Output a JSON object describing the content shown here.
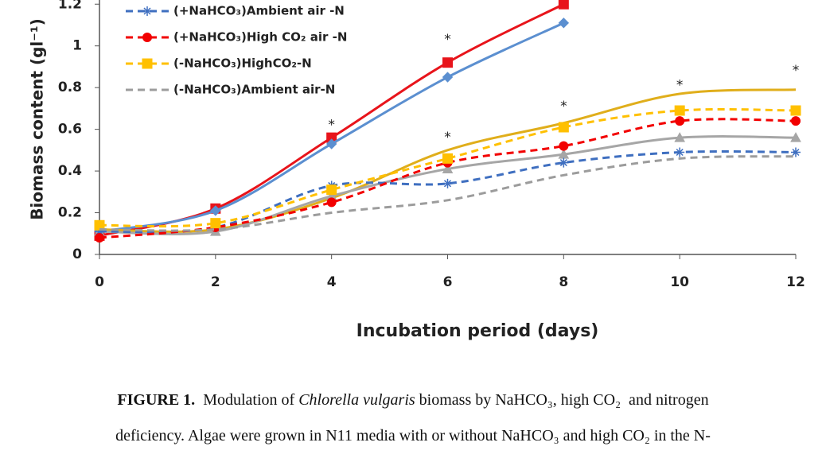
{
  "chart_data": {
    "type": "line",
    "ylabel": "Biomass content (gl⁻¹)",
    "xlabel": "Incubation period (days)",
    "x": [
      0,
      2,
      4,
      6,
      8,
      10,
      12
    ],
    "xlim": [
      0,
      12
    ],
    "xticks": [
      0,
      2,
      4,
      6,
      8,
      10,
      12
    ],
    "ylim": [
      0,
      1.22
    ],
    "yticks": [
      0,
      0.2,
      0.4,
      0.6,
      0.8,
      1,
      1.2
    ],
    "series": [
      {
        "color": "#e8141b",
        "dash": false,
        "marker": "square",
        "values": [
          0.09,
          0.22,
          0.56,
          0.92,
          1.2,
          null,
          null
        ]
      },
      {
        "color": "#5b8fd0",
        "dash": false,
        "marker": "diamond",
        "values": [
          0.11,
          0.21,
          0.53,
          0.85,
          1.11,
          null,
          null
        ]
      },
      {
        "color": "#e0ae1b",
        "dash": false,
        "marker": "none",
        "values": [
          0.12,
          0.12,
          0.27,
          0.5,
          0.63,
          0.77,
          0.79
        ]
      },
      {
        "color": "#a6a6a6",
        "dash": false,
        "marker": "triangle",
        "values": [
          0.11,
          0.11,
          0.28,
          0.41,
          0.48,
          0.56,
          0.56
        ]
      },
      {
        "name": "(+NaHCO₃)Ambient air -N",
        "color": "#3f6fc0",
        "dash": true,
        "marker": "star",
        "values": [
          0.11,
          0.13,
          0.33,
          0.34,
          0.44,
          0.49,
          0.49
        ]
      },
      {
        "name": "(+NaHCO₃)High  CO₂ air -N",
        "color": "#f20000",
        "dash": true,
        "marker": "circle",
        "values": [
          0.08,
          0.13,
          0.25,
          0.44,
          0.52,
          0.64,
          0.64
        ]
      },
      {
        "name": "(-NaHCO₃)HighCO₂-N",
        "color": "#ffc000",
        "dash": true,
        "marker": "square",
        "values": [
          0.14,
          0.15,
          0.31,
          0.46,
          0.61,
          0.69,
          0.69
        ]
      },
      {
        "name": "(-NaHCO₃)Ambient air-N",
        "color": "#9c9c9c",
        "dash": true,
        "marker": "none",
        "values": [
          0.12,
          0.12,
          0.2,
          0.26,
          0.38,
          0.46,
          0.47
        ]
      }
    ],
    "annotations": [
      {
        "text": "*",
        "x": 4,
        "y": 0.62
      },
      {
        "text": "*",
        "x": 6,
        "y": 1.03
      },
      {
        "text": "*",
        "x": 6,
        "y": 0.56
      },
      {
        "text": "*",
        "x": 8,
        "y": 0.71
      },
      {
        "text": "*",
        "x": 10,
        "y": 0.81
      },
      {
        "text": "*",
        "x": 12,
        "y": 0.88
      }
    ]
  },
  "caption": {
    "label": "FIGURE 1.",
    "parts": [
      "Modulation of ",
      "Chlorella vulgaris",
      " biomass by NaHCO₃, high CO₂  and nitrogen"
    ],
    "line2": "deficiency. Algae were grown in N11 media with or without NaHCO₃ and high CO₂ in the N-"
  }
}
